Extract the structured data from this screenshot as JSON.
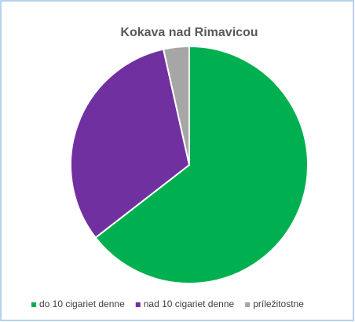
{
  "chart_data": {
    "type": "pie",
    "title": "Kokava nad Rimavicou",
    "categories": [
      "do 10 cigariet denne",
      "nad 10 cigariet denne",
      "príležitostne"
    ],
    "values": [
      64.5,
      32,
      3.5
    ],
    "colors": [
      "#00b050",
      "#7030a0",
      "#a6a6a6"
    ],
    "legend": "bottom"
  }
}
